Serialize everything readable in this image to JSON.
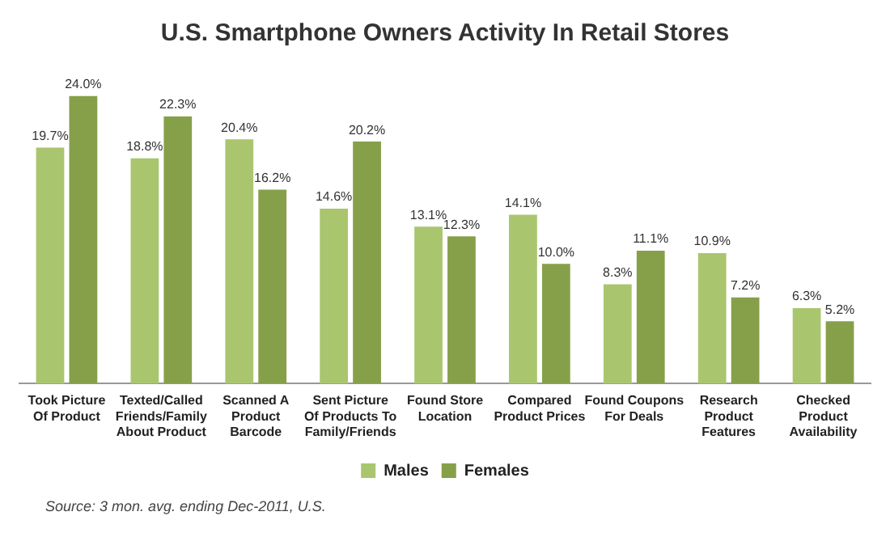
{
  "chart_data": {
    "type": "bar",
    "title": "U.S. Smartphone Owners Activity In Retail Stores",
    "categories": [
      "Took Picture Of Product",
      "Texted/Called Friends/Family About Product",
      "Scanned A Product Barcode",
      "Sent Picture Of Products To Family/Friends",
      "Found Store Location",
      "Compared Product Prices",
      "Found Coupons For Deals",
      "Research Product Features",
      "Checked Product Availability"
    ],
    "series": [
      {
        "name": "Males",
        "color": "#a9c66f",
        "values": [
          19.7,
          18.8,
          20.4,
          14.6,
          13.1,
          14.1,
          8.3,
          10.9,
          6.3
        ],
        "value_labels": [
          "19.7%",
          "18.8%",
          "20.4%",
          "14.6%",
          "13.1%",
          "14.1%",
          "8.3%",
          "10.9%",
          "6.3%"
        ]
      },
      {
        "name": "Females",
        "color": "#86a04a",
        "values": [
          24.0,
          22.3,
          16.2,
          20.2,
          12.3,
          10.0,
          11.1,
          7.2,
          5.2
        ],
        "value_labels": [
          "24.0%",
          "22.3%",
          "16.2%",
          "20.2%",
          "12.3%",
          "10.0%",
          "11.1%",
          "7.2%",
          "5.2%"
        ]
      }
    ],
    "legend": "bottom",
    "annotations": [
      "Source: 3 mon. avg. ending Dec-2011, U.S."
    ]
  }
}
